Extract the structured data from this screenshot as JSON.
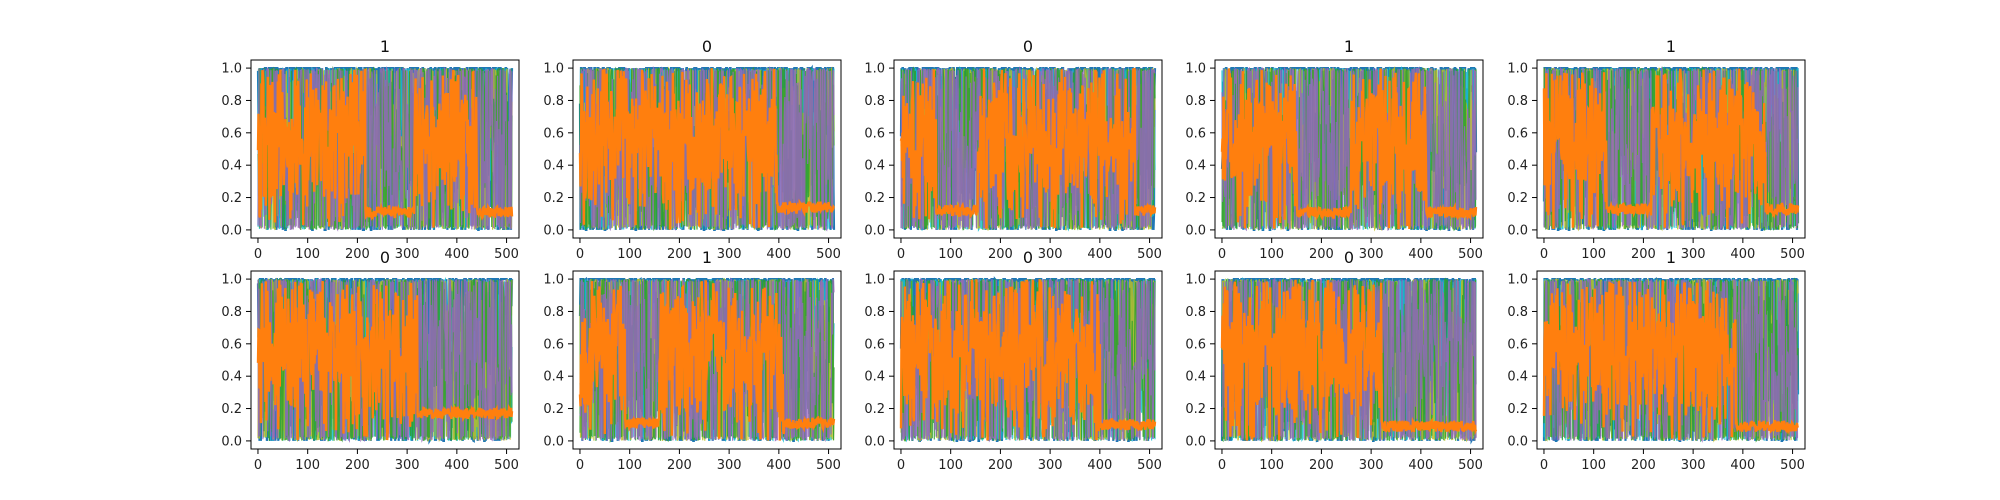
{
  "chart_data": {
    "type": "line",
    "layout": {
      "rows": 2,
      "cols": 5
    },
    "xlim": [
      -14,
      525
    ],
    "ylim": [
      -0.05,
      1.05
    ],
    "xticks": [
      0,
      100,
      200,
      300,
      400,
      500
    ],
    "yticks": [
      "0.0",
      "0.2",
      "0.4",
      "0.6",
      "0.8",
      "1.0"
    ],
    "n_points": 512,
    "grid": false,
    "colors": {
      "background_series": [
        "#1f77b4",
        "#17becf",
        "#bcbd22",
        "#2ca02c",
        "#9467bd"
      ],
      "highlight_series": "#ff7f0e"
    },
    "panels": [
      {
        "title": "1",
        "dense_segments": [
          [
            0,
            215
          ],
          [
            315,
            440
          ]
        ],
        "plateau_level": 0.11
      },
      {
        "title": "0",
        "dense_segments": [
          [
            0,
            395
          ]
        ],
        "plateau_level": 0.14
      },
      {
        "title": "0",
        "dense_segments": [
          [
            0,
            70
          ],
          [
            155,
            470
          ]
        ],
        "plateau_level": 0.12
      },
      {
        "title": "1",
        "dense_segments": [
          [
            0,
            150
          ],
          [
            260,
            410
          ]
        ],
        "plateau_level": 0.11
      },
      {
        "title": "1",
        "dense_segments": [
          [
            0,
            125
          ],
          [
            215,
            445
          ]
        ],
        "plateau_level": 0.13
      },
      {
        "title": "0",
        "dense_segments": [
          [
            0,
            320
          ]
        ],
        "plateau_level": 0.17
      },
      {
        "title": "1",
        "dense_segments": [
          [
            0,
            90
          ],
          [
            160,
            410
          ]
        ],
        "plateau_level": 0.11
      },
      {
        "title": "0",
        "dense_segments": [
          [
            0,
            400
          ]
        ],
        "plateau_level": 0.1
      },
      {
        "title": "0",
        "dense_segments": [
          [
            0,
            320
          ]
        ],
        "plateau_level": 0.09
      },
      {
        "title": "1",
        "dense_segments": [
          [
            0,
            385
          ]
        ],
        "plateau_level": 0.09
      }
    ]
  }
}
